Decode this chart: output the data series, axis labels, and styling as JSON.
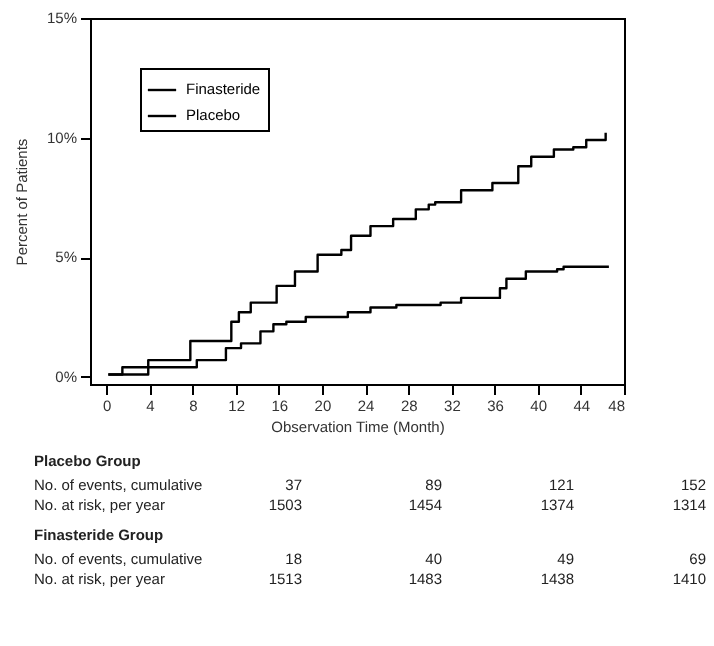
{
  "chart_data": {
    "type": "step",
    "xlabel": "Observation Time (Month)",
    "ylabel": "Percent of Patients",
    "series": [
      {
        "name": "Finasteride",
        "color": "#000000",
        "x": [
          0.2,
          1.5,
          7.8,
          8.4,
          10.2,
          11.1,
          12.5,
          14.3,
          15.5,
          16.7,
          18.5,
          21.8,
          22.4,
          24.5,
          26.9,
          31,
          32.9,
          34.7,
          36.5,
          37.1,
          38.9,
          41.8,
          42.4,
          46.6
        ],
        "values": [
          0.1,
          0.4,
          0.4,
          0.7,
          0.7,
          1.2,
          1.4,
          1.9,
          2.2,
          2.3,
          2.5,
          2.5,
          2.7,
          2.9,
          3.0,
          3.1,
          3.3,
          3.3,
          3.7,
          4.1,
          4.4,
          4.5,
          4.6,
          4.6
        ]
      },
      {
        "name": "Placebo",
        "color": "#000000",
        "x": [
          0.2,
          3.9,
          7.8,
          11.6,
          12.3,
          13.4,
          15.8,
          17.5,
          19.6,
          21.8,
          22.7,
          24.5,
          26.6,
          28.7,
          29.9,
          30.5,
          32.9,
          35.8,
          38.2,
          39.4,
          41.5,
          43.3,
          44.5,
          46.3,
          46.3
        ],
        "values": [
          0.1,
          0.7,
          1.5,
          2.3,
          2.7,
          3.1,
          3.8,
          4.4,
          5.1,
          5.3,
          5.9,
          6.3,
          6.6,
          7.0,
          7.2,
          7.3,
          7.8,
          8.1,
          8.8,
          9.2,
          9.5,
          9.6,
          9.9,
          9.9,
          10.2
        ]
      }
    ],
    "xlim": [
      -1.5,
      48
    ],
    "xticks": [
      0,
      4,
      8,
      12,
      16,
      20,
      24,
      28,
      32,
      36,
      40,
      44,
      48
    ],
    "ylim": [
      -0.3,
      15
    ],
    "yticks": [
      {
        "value": 0,
        "label": "0%"
      },
      {
        "value": 5,
        "label": "5%"
      },
      {
        "value": 10,
        "label": "10%"
      },
      {
        "value": 15,
        "label": "15%"
      }
    ],
    "legend": "top left",
    "grid": false,
    "marker": "none",
    "line_style": "solid",
    "annotations": [
      "Placebo Group",
      "No. of events, cumulative",
      "37",
      "89",
      "121",
      "152",
      "No. at risk, per year",
      "1503",
      "1454",
      "1374",
      "1314",
      "Finasteride Group",
      "No. of events, cumulative",
      "18",
      "40",
      "49",
      "69",
      "No. at risk, per year",
      "1513",
      "1483",
      "1438",
      "1410"
    ]
  }
}
